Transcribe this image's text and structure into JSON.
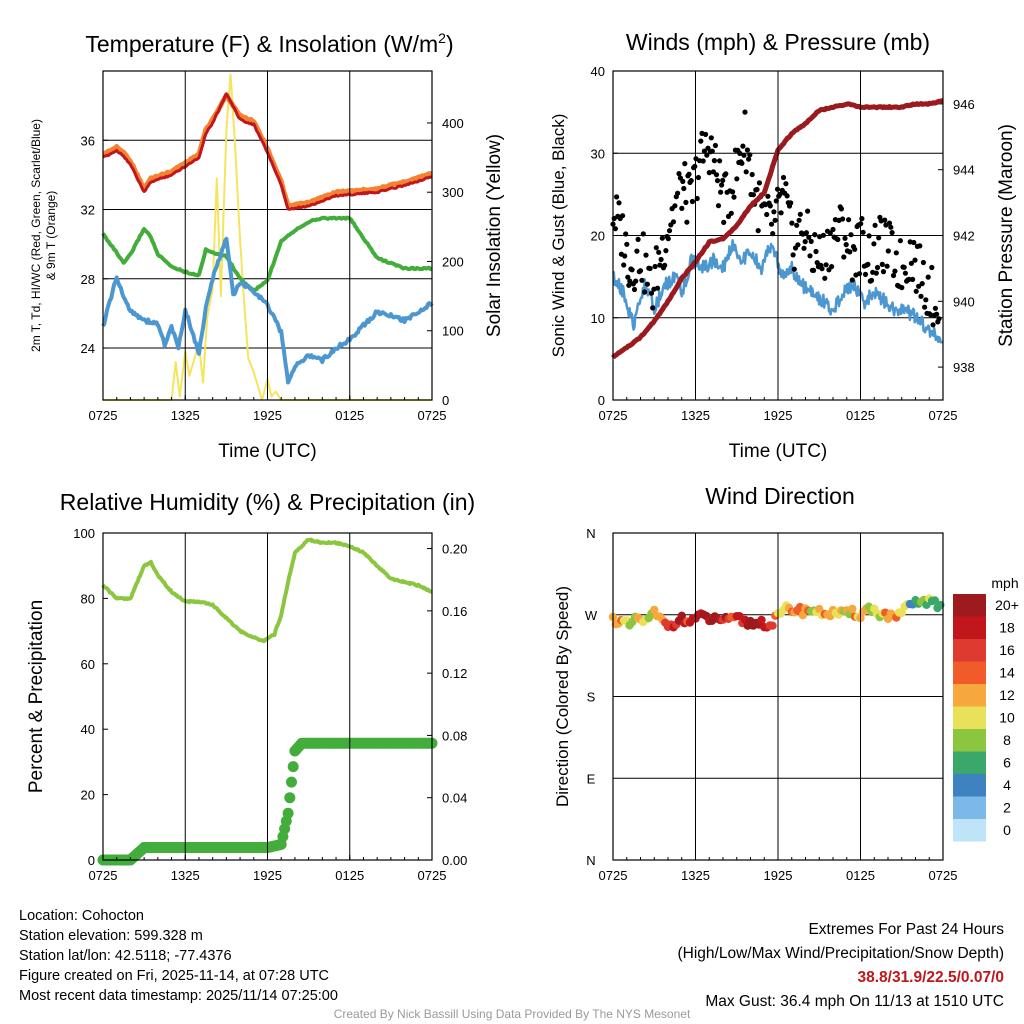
{
  "chart_data": [
    {
      "type": "line",
      "title": "Temperature (F) & Insolation (W/m²)",
      "xlabel": "Time (UTC)",
      "ylabel_left": "2m T, Td, HI/WC (Red, Green, Scarlet/Blue) & 9m T (Orange)",
      "ylabel_right": "Solar Insolation (Yellow)",
      "xticks": [
        "0725",
        "1325",
        "1925",
        "0125",
        "0725"
      ],
      "xlim": [
        0,
        24
      ],
      "ylim_left": [
        21,
        40
      ],
      "yticks_left": [
        24,
        28,
        32,
        36
      ],
      "ylim_right": [
        0,
        475
      ],
      "yticks_right": [
        0,
        100,
        200,
        300,
        400
      ],
      "series": [
        {
          "name": "9m T",
          "color": "#f58231",
          "axis": "left",
          "x": [
            0,
            1,
            1.5,
            2,
            3,
            3.5,
            5,
            7,
            7.5,
            8,
            9,
            10,
            11,
            12,
            13,
            13.5,
            15,
            17,
            20,
            22,
            24
          ],
          "y": [
            35.2,
            35.6,
            35.3,
            34.8,
            33.2,
            33.8,
            34.2,
            35.2,
            36.6,
            37.2,
            38.6,
            37.4,
            37.1,
            35.5,
            33.6,
            32.2,
            32.4,
            33.0,
            33.2,
            33.6,
            34.1
          ]
        },
        {
          "name": "2m T",
          "color": "#c0161c",
          "axis": "left",
          "x": [
            0,
            1,
            1.5,
            2,
            3,
            3.5,
            5,
            7,
            7.5,
            8,
            9,
            10,
            11,
            12,
            13,
            13.5,
            15,
            17,
            20,
            22,
            24
          ],
          "y": [
            35.0,
            35.4,
            35.1,
            34.6,
            33.0,
            33.6,
            34.0,
            35.0,
            36.4,
            37.0,
            38.7,
            37.2,
            36.9,
            35.3,
            33.4,
            32.0,
            32.2,
            32.8,
            33.0,
            33.4,
            33.9
          ]
        },
        {
          "name": "Td",
          "color": "#43ad3c",
          "axis": "left",
          "x": [
            0,
            1,
            1.5,
            2,
            3,
            3.5,
            4,
            5,
            6,
            7,
            7.5,
            8,
            9,
            10,
            11,
            12,
            13,
            14,
            15,
            16,
            18,
            20,
            22,
            24
          ],
          "y": [
            30.6,
            29.5,
            28.9,
            29.4,
            30.9,
            30.4,
            29.4,
            28.7,
            28.4,
            28.2,
            29.7,
            29.5,
            29.3,
            28.0,
            27.3,
            27.9,
            30.2,
            30.8,
            31.3,
            31.5,
            31.5,
            29.2,
            28.6,
            28.6
          ]
        },
        {
          "name": "HI/WC",
          "color": "#4d97d1",
          "axis": "left",
          "x": [
            0,
            0.5,
            1,
            1.5,
            2,
            3,
            4,
            4.5,
            5,
            5.5,
            6,
            7,
            7.5,
            8,
            9,
            9.5,
            10,
            11,
            12,
            13,
            13.5,
            14,
            15,
            16,
            17,
            18,
            19,
            20,
            22,
            24
          ],
          "y": [
            25.2,
            26.7,
            28.1,
            26.9,
            26.2,
            25.6,
            25.4,
            24.2,
            25.2,
            24.0,
            26.2,
            23.7,
            26.3,
            28.0,
            30.4,
            27.0,
            27.8,
            27.3,
            26.5,
            24.9,
            22.1,
            22.9,
            23.6,
            23.3,
            24.0,
            24.5,
            25.3,
            26.1,
            25.6,
            26.6
          ]
        },
        {
          "name": "Solar Insolation",
          "color": "#f5e55d",
          "axis": "right",
          "x": [
            0,
            5,
            5.3,
            5.6,
            6,
            6.3,
            6.6,
            7,
            7.3,
            7.6,
            8,
            8.3,
            8.6,
            9,
            9.3,
            9.6,
            10,
            10.3,
            10.6,
            11,
            11.3,
            11.6,
            12,
            12.3,
            12.6,
            13,
            24
          ],
          "y": [
            0,
            0,
            55,
            5,
            70,
            35,
            55,
            80,
            25,
            120,
            160,
            320,
            150,
            390,
            470,
            380,
            230,
            140,
            60,
            40,
            20,
            0,
            30,
            5,
            12,
            0,
            0
          ]
        }
      ]
    },
    {
      "type": "scatter",
      "title": "Winds (mph) & Pressure (mb)",
      "xlabel": "Time (UTC)",
      "ylabel_left": "Sonic Wind & Gust (Blue, Black)",
      "ylabel_right": "Station Pressure (Maroon)",
      "xticks": [
        "0725",
        "1325",
        "1925",
        "0125",
        "0725"
      ],
      "xlim": [
        0,
        24
      ],
      "ylim_left": [
        0,
        40
      ],
      "yticks_left": [
        0,
        10,
        20,
        30,
        40
      ],
      "ylim_right": [
        937,
        947
      ],
      "yticks_right": [
        938,
        940,
        942,
        944,
        946
      ],
      "series": [
        {
          "name": "Sonic Wind",
          "color": "#4d97d1",
          "axis": "left",
          "x": [
            0,
            0.8,
            1.5,
            2.3,
            3,
            3.8,
            4.5,
            5,
            5.7,
            6.5,
            7.3,
            8,
            8.7,
            9.3,
            10,
            10.8,
            11.5,
            12.3,
            13,
            13.7,
            14.5,
            15.3,
            16,
            16.8,
            17.5,
            18.3,
            19,
            19.8,
            20.5,
            21.3,
            22,
            22.7,
            23.3,
            24
          ],
          "y": [
            15,
            13,
            9,
            14,
            11,
            14,
            15,
            13,
            17,
            16,
            17,
            16,
            19,
            17,
            18,
            16,
            19,
            15,
            16,
            14,
            13,
            12,
            11,
            13,
            14,
            12,
            13,
            12,
            11,
            11,
            10,
            9,
            8,
            7
          ]
        },
        {
          "name": "Gust",
          "color": "#000000",
          "axis": "left",
          "x": [
            0,
            0.7,
            1.3,
            2,
            2.8,
            3.5,
            4.2,
            5,
            5.6,
            6.3,
            7,
            7.6,
            8.2,
            9,
            9.6,
            10.3,
            11,
            11.7,
            12.4,
            13.1,
            13.8,
            14.5,
            15.2,
            16,
            16.7,
            17.4,
            18.1,
            18.8,
            19.5,
            20.2,
            21,
            21.7,
            22.4,
            23.1,
            23.8
          ],
          "y": [
            23,
            20,
            16,
            18,
            13,
            18,
            22,
            26,
            24,
            29,
            31,
            27,
            24,
            28,
            32,
            25,
            22,
            21,
            25,
            19,
            21,
            18,
            17,
            20,
            21,
            18,
            19,
            17,
            19,
            18,
            16,
            18,
            15,
            13,
            11
          ]
        },
        {
          "name": "Station Pressure",
          "color": "#9a1a1f",
          "axis": "right",
          "x": [
            0,
            1,
            2,
            3,
            4,
            5,
            6,
            7,
            8,
            9,
            10,
            11,
            12,
            13,
            14,
            15,
            16,
            17,
            18,
            19,
            20,
            21,
            22,
            23,
            24
          ],
          "y": [
            938.3,
            938.6,
            938.9,
            939.4,
            940.0,
            940.7,
            941.2,
            941.8,
            941.9,
            942.3,
            942.9,
            943.3,
            944.6,
            945.1,
            945.4,
            945.8,
            945.9,
            946.0,
            945.9,
            945.9,
            945.9,
            945.9,
            946.0,
            946.0,
            946.1
          ]
        }
      ]
    },
    {
      "type": "line",
      "title": "Relative Humidity (%) & Precipitation (in)",
      "ylabel_left": "Percent & Precipitation",
      "xticks": [
        "0725",
        "1325",
        "1925",
        "0125",
        "0725"
      ],
      "xlim": [
        0,
        24
      ],
      "ylim_left": [
        0,
        100
      ],
      "yticks_left": [
        0,
        20,
        40,
        60,
        80,
        100
      ],
      "ylim_right": [
        0,
        0.21
      ],
      "yticks_right": [
        "0.00",
        "0.04",
        "0.08",
        "0.12",
        "0.16",
        "0.20"
      ],
      "series": [
        {
          "name": "Relative Humidity",
          "color": "#8cc63f",
          "axis": "left",
          "x": [
            0,
            0.5,
            1,
            2,
            3,
            3.5,
            4,
            5,
            6,
            7,
            8,
            9,
            10,
            11,
            11.7,
            12.5,
            13,
            13.5,
            14,
            15,
            16,
            17,
            18,
            19,
            20,
            21,
            22,
            23,
            24
          ],
          "y": [
            84,
            82,
            80,
            80,
            90,
            91,
            87,
            82,
            79,
            79,
            78,
            74,
            70,
            68,
            67,
            69,
            75,
            85,
            94,
            98,
            97,
            97,
            96,
            94,
            90,
            86,
            85,
            84,
            82
          ]
        },
        {
          "name": "Precipitation",
          "color": "#43ad3c",
          "axis": "right",
          "x": [
            0,
            2,
            3,
            4,
            6,
            8,
            10,
            12,
            13,
            13.5,
            14,
            14.5,
            15,
            17,
            20,
            24
          ],
          "y": [
            0.0,
            0.0,
            0.008,
            0.008,
            0.008,
            0.008,
            0.008,
            0.008,
            0.01,
            0.03,
            0.07,
            0.075,
            0.075,
            0.075,
            0.075,
            0.075
          ]
        }
      ]
    },
    {
      "type": "scatter",
      "title": "Wind Direction",
      "ylabel_left": "Direction (Colored By Speed)",
      "xticks": [
        "0725",
        "1325",
        "1925",
        "0125",
        "0725"
      ],
      "xlim": [
        0,
        24
      ],
      "yticks_left": [
        "N",
        "W",
        "S",
        "E",
        "N"
      ],
      "ylim_deg": [
        0,
        360
      ],
      "colorbar": {
        "title": "mph",
        "labels": [
          "20+",
          "18",
          "16",
          "14",
          "12",
          "10",
          "8",
          "6",
          "4",
          "2",
          "0"
        ],
        "colors": [
          "#9e1a1f",
          "#c0161c",
          "#df3a2f",
          "#f15b2a",
          "#f6a83e",
          "#e9e15a",
          "#8cc63f",
          "#3aa86a",
          "#3f82c2",
          "#7db9e8",
          "#bfe3f7"
        ]
      },
      "points": {
        "x": [
          0,
          0.6,
          1.2,
          1.8,
          2.4,
          3.0,
          3.6,
          4.2,
          4.8,
          5.4,
          6.0,
          6.6,
          7.2,
          7.8,
          8.4,
          9.0,
          9.6,
          10.2,
          10.8,
          11.4,
          12.0,
          12.6,
          13.2,
          13.8,
          14.4,
          15.0,
          15.6,
          16.2,
          16.8,
          17.4,
          18.0,
          18.6,
          19.2,
          19.8,
          20.4,
          21.0,
          21.6,
          22.2,
          22.8,
          23.4,
          24.0
        ],
        "y": [
          265,
          262,
          258,
          266,
          262,
          272,
          262,
          258,
          266,
          262,
          266,
          268,
          264,
          266,
          262,
          266,
          262,
          260,
          262,
          258,
          268,
          276,
          276,
          274,
          276,
          272,
          272,
          272,
          270,
          272,
          270,
          278,
          272,
          270,
          266,
          272,
          280,
          284,
          285,
          282,
          278
        ],
        "speed": [
          14,
          12,
          7,
          10,
          8,
          12,
          14,
          16,
          18,
          16,
          18,
          20,
          19,
          18,
          16,
          17,
          18,
          20,
          18,
          16,
          12,
          12,
          12,
          12,
          10,
          12,
          10,
          12,
          10,
          12,
          12,
          10,
          10,
          12,
          12,
          10,
          6,
          8,
          8,
          6,
          6
        ]
      }
    }
  ],
  "footer": {
    "location": "Location: Cohocton",
    "elevation": "Station elevation: 599.328 m",
    "latlon": "Station lat/lon: 42.5118; -77.4376",
    "created": "Figure created on Fri, 2025-11-14, at 07:28 UTC",
    "recent": "Most recent data timestamp: 2025/11/14 07:25:00",
    "extremes_title": "Extremes For Past 24 Hours",
    "extremes_sub": "(High/Low/Max Wind/Precipitation/Snow Depth)",
    "extremes_values": "38.8/31.9/22.5/0.07/0",
    "max_gust": "Max Gust: 36.4 mph On 11/13 at 1510 UTC",
    "credit": "Created By Nick Bassill Using Data Provided By The NYS Mesonet"
  }
}
